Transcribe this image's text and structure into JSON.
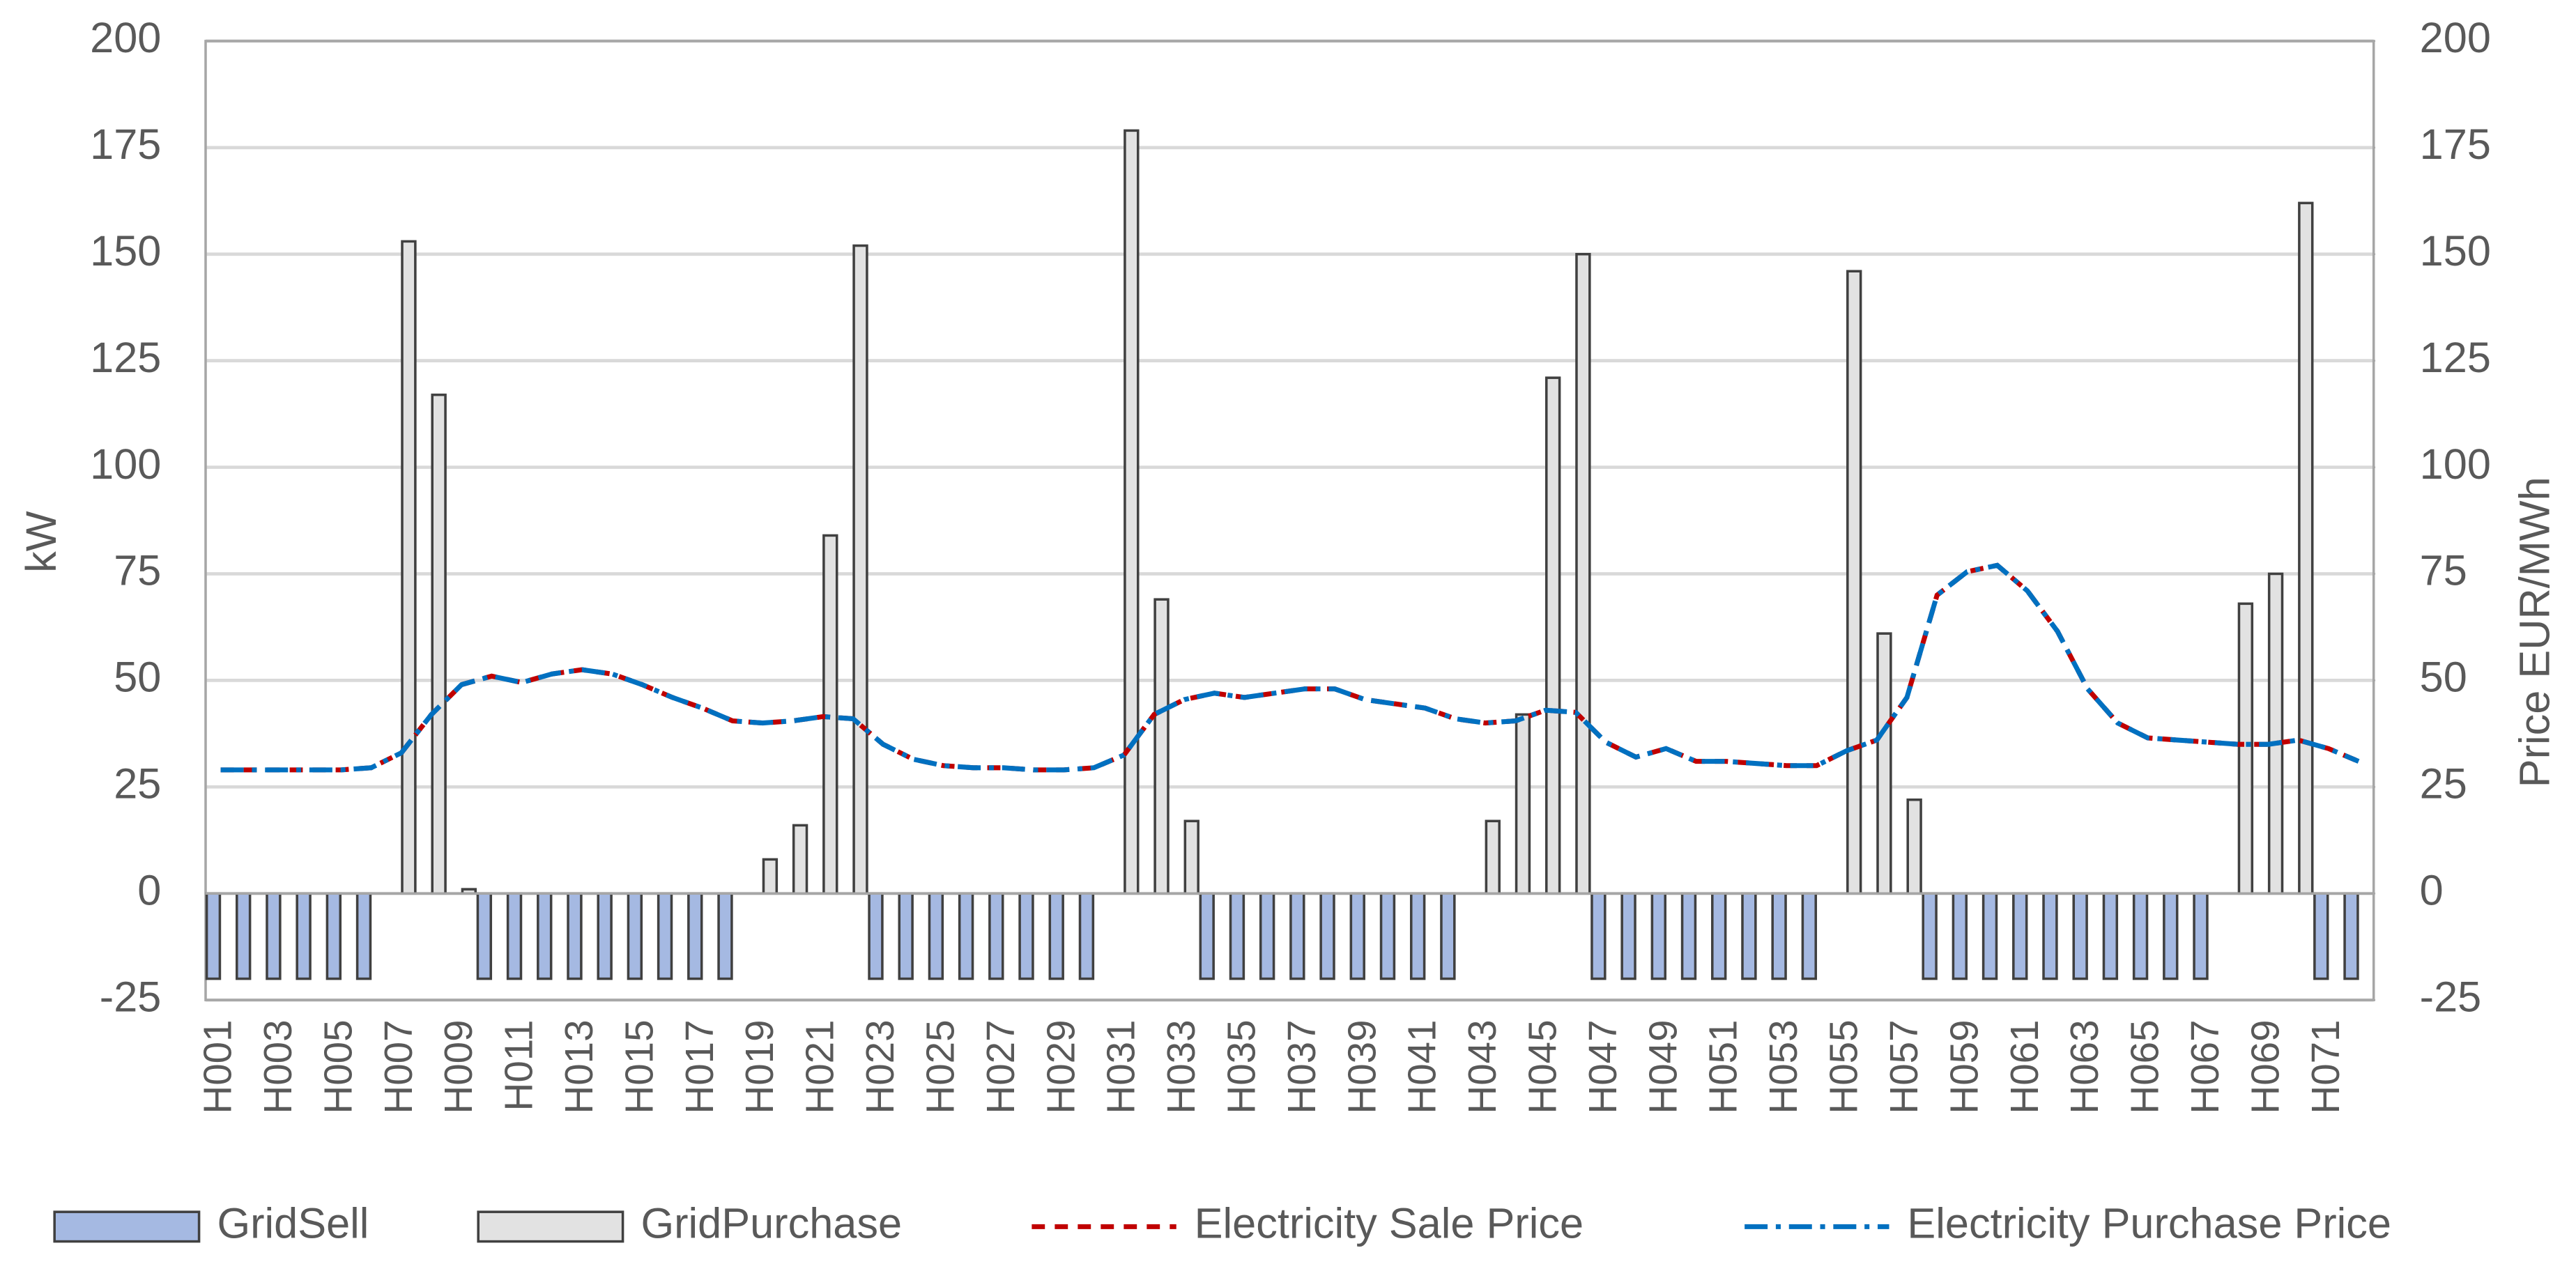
{
  "chart_data": {
    "type": "bar",
    "categories": [
      "H001",
      null,
      "H003",
      null,
      "H005",
      null,
      "H007",
      null,
      "H009",
      null,
      "H011",
      null,
      "H013",
      null,
      "H015",
      null,
      "H017",
      null,
      "H019",
      null,
      "H021",
      null,
      "H023",
      null,
      "H025",
      null,
      "H027",
      null,
      "H029",
      null,
      "H031",
      null,
      "H033",
      null,
      "H035",
      null,
      "H037",
      null,
      "H039",
      null,
      "H041",
      null,
      "H043",
      null,
      "H045",
      null,
      "H047",
      null,
      "H049",
      null,
      "H051",
      null,
      "H053",
      null,
      "H055",
      null,
      "H057",
      null,
      "H059",
      null,
      "H061",
      null,
      "H063",
      null,
      "H065",
      null,
      "H067",
      null,
      "H069",
      null,
      "H071",
      null
    ],
    "series": [
      {
        "name": "GridSell",
        "type": "bar",
        "color": "#a5b9e2",
        "values": [
          -20,
          -20,
          -20,
          -20,
          -20,
          -20,
          0,
          0,
          0,
          -20,
          -20,
          -20,
          -20,
          -20,
          -20,
          -20,
          -20,
          -20,
          0,
          0,
          0,
          0,
          -20,
          -20,
          -20,
          -20,
          -20,
          -20,
          -20,
          -20,
          0,
          0,
          0,
          -20,
          -20,
          -20,
          -20,
          -20,
          -20,
          -20,
          -20,
          -20,
          0,
          0,
          0,
          0,
          -20,
          -20,
          -20,
          -20,
          -20,
          -20,
          -20,
          -20,
          0,
          0,
          0,
          -20,
          -20,
          -20,
          -20,
          -20,
          -20,
          -20,
          -20,
          -20,
          -20,
          0,
          0,
          0,
          -20,
          -20
        ]
      },
      {
        "name": "GridPurchase",
        "type": "bar",
        "color": "#e2e2e2",
        "values": [
          0,
          0,
          0,
          0,
          0,
          0,
          153,
          117,
          1,
          0,
          0,
          0,
          0,
          0,
          0,
          0,
          0,
          0,
          8,
          16,
          84,
          152,
          0,
          0,
          0,
          0,
          0,
          0,
          0,
          0,
          179,
          69,
          17,
          0,
          0,
          0,
          0,
          0,
          0,
          0,
          0,
          0,
          17,
          42,
          121,
          150,
          0,
          0,
          0,
          0,
          0,
          0,
          0,
          0,
          146,
          61,
          22,
          0,
          0,
          0,
          0,
          0,
          0,
          0,
          0,
          0,
          0,
          68,
          75,
          162,
          0,
          0
        ]
      },
      {
        "name": "Electricity Sale Price",
        "type": "line",
        "axis": "y2",
        "color": "#c00000",
        "values": [
          29,
          29,
          29,
          29,
          29,
          29.5,
          33,
          42,
          49,
          51,
          49.5,
          51.5,
          52.5,
          51.5,
          49,
          46,
          43.5,
          40.5,
          40,
          40.5,
          41.5,
          41,
          35,
          31.5,
          30,
          29.5,
          29.5,
          29,
          29,
          29.5,
          32.5,
          42,
          45.5,
          47,
          46,
          47,
          48,
          48,
          45.5,
          44.5,
          43.5,
          41,
          40,
          40.5,
          43,
          42.5,
          35.5,
          32,
          34,
          31,
          31,
          30.5,
          30,
          30,
          33.5,
          36,
          46,
          70,
          75.5,
          77,
          71,
          61.5,
          48,
          40,
          36.5,
          36,
          35.5,
          35,
          35,
          36,
          34,
          31
        ]
      },
      {
        "name": "Electricity Purchase Price",
        "type": "line",
        "axis": "y2",
        "color": "#0070c0",
        "values": [
          29,
          29,
          29,
          29,
          29,
          29.5,
          33,
          42,
          49,
          51,
          49.5,
          51.5,
          52.5,
          51.5,
          49,
          46,
          43.5,
          40.5,
          40,
          40.5,
          41.5,
          41,
          35,
          31.5,
          30,
          29.5,
          29.5,
          29,
          29,
          29.5,
          32.5,
          42,
          45.5,
          47,
          46,
          47,
          48,
          48,
          45.5,
          44.5,
          43.5,
          41,
          40,
          40.5,
          43,
          42.5,
          35.5,
          32,
          34,
          31,
          31,
          30.5,
          30,
          30,
          33.5,
          36,
          46,
          70,
          75.5,
          77,
          71,
          61.5,
          48,
          40,
          36.5,
          36,
          35.5,
          35,
          35,
          36,
          34,
          31
        ]
      }
    ],
    "ylabel": "kW",
    "y2label": "Price EUR/MWh",
    "ylim": [
      -25,
      200
    ],
    "yticks": [
      -25,
      0,
      25,
      50,
      75,
      100,
      125,
      150,
      175,
      200
    ],
    "y2lim": [
      -25,
      200
    ],
    "y2ticks": [
      -25,
      0,
      25,
      50,
      75,
      100,
      125,
      150,
      175,
      200
    ],
    "grid": true,
    "legend": "bottom"
  }
}
